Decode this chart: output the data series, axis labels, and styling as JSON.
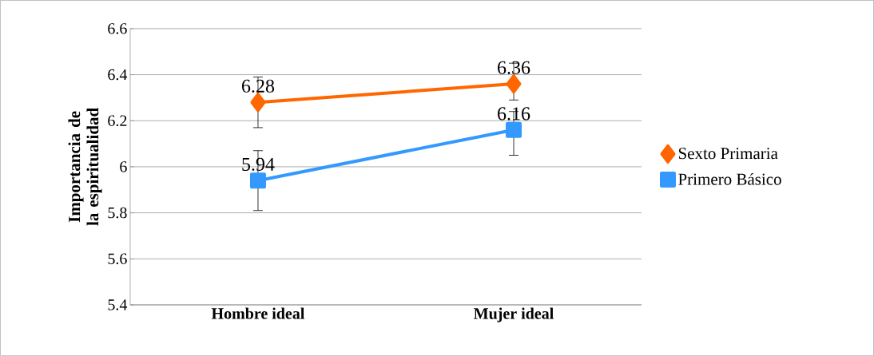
{
  "chart_data": {
    "type": "line",
    "ylabel": "Importancia de la espiritualidad",
    "categories": [
      "Hombre ideal",
      "Mujer ideal"
    ],
    "series": [
      {
        "name": "Sexto Primaria",
        "color": "#ff6600",
        "marker": "diamond",
        "values": [
          6.28,
          6.36
        ],
        "errors": [
          0.11,
          [
            6.29,
            6.45
          ]
        ]
      },
      {
        "name": "Primero Básico",
        "color": "#3399ff",
        "marker": "square",
        "values": [
          5.94,
          6.16
        ],
        "errors": [
          0.13,
          [
            6.05,
            6.24
          ]
        ]
      }
    ],
    "ylim": [
      5.4,
      6.6
    ],
    "yticks": [
      5.4,
      5.6,
      5.8,
      {
        "value": 6,
        "label": "6"
      },
      6.2,
      6.4,
      6.6
    ],
    "grid": "y",
    "legend": "right",
    "data_labels": true,
    "line_style": "solid"
  }
}
